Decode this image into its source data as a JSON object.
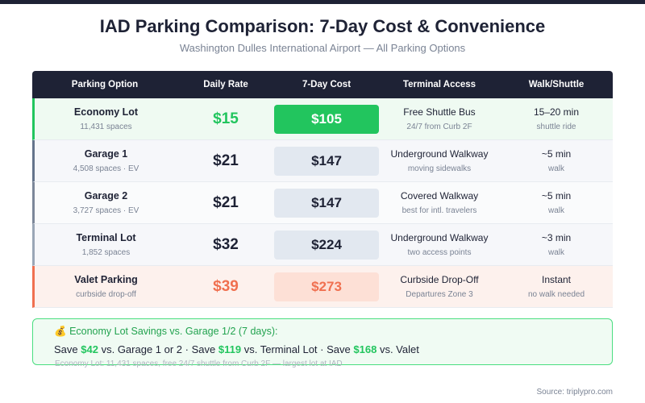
{
  "header": {
    "title": "IAD Parking Comparison: 7-Day Cost & Convenience",
    "subtitle": "Washington Dulles International Airport — All Parking Options"
  },
  "table": {
    "columns": [
      "Parking Option",
      "Daily Rate",
      "7-Day Cost",
      "Terminal Access",
      "Walk/Shuttle"
    ],
    "rows": [
      {
        "name": "Economy Lot",
        "detail": "11,431 spaces",
        "rate": "$15",
        "cost": "$105",
        "access": "Free Shuttle Bus",
        "access_detail": "24/7 from Curb 2F",
        "walk": "15–20 min",
        "walk_detail": "shuttle ride",
        "accent": "#22c55e",
        "background": "#effaf2",
        "cost_fill": "#22c55e",
        "cost_text": "#ffffff",
        "rate_color": "#22c55e"
      },
      {
        "name": "Garage 1",
        "detail": "4,508 spaces · EV",
        "rate": "$21",
        "cost": "$147",
        "access": "Underground Walkway",
        "access_detail": "moving sidewalks",
        "walk": "~5 min",
        "walk_detail": "walk",
        "accent": "#64748b",
        "background": "#f6f7fa",
        "cost_fill": "#e2e8f0",
        "cost_text": "#1e2235",
        "rate_color": "#1e2235"
      },
      {
        "name": "Garage 2",
        "detail": "3,727 spaces · EV",
        "rate": "$21",
        "cost": "$147",
        "access": "Covered Walkway",
        "access_detail": "best for intl. travelers",
        "walk": "~5 min",
        "walk_detail": "walk",
        "accent": "#7c8799",
        "background": "#fafbfc",
        "cost_fill": "#e2e8f0",
        "cost_text": "#1e2235",
        "rate_color": "#1e2235"
      },
      {
        "name": "Terminal Lot",
        "detail": "1,852 spaces",
        "rate": "$32",
        "cost": "$224",
        "access": "Underground Walkway",
        "access_detail": "two access points",
        "walk": "~3 min",
        "walk_detail": "walk",
        "accent": "#9aa6b6",
        "background": "#f6f7fa",
        "cost_fill": "#e2e8f0",
        "cost_text": "#1e2235",
        "rate_color": "#1e2235"
      },
      {
        "name": "Valet Parking",
        "detail": "curbside drop-off",
        "rate": "$39",
        "cost": "$273",
        "access": "Curbside Drop-Off",
        "access_detail": "Departures Zone 3",
        "walk": "Instant",
        "walk_detail": "no walk needed",
        "accent": "#f07050",
        "background": "#fdf1ed",
        "cost_fill": "#fde0d6",
        "cost_text": "#f07050",
        "rate_color": "#f07050"
      }
    ]
  },
  "savings": {
    "icon": "💰",
    "title": "Economy Lot Savings vs. Garage 1/2 (7 days):",
    "separator": "·",
    "items": [
      {
        "prefix": "Save",
        "amount": "$42",
        "target": "vs. Garage 1 or 2"
      },
      {
        "prefix": "Save",
        "amount": "$119",
        "target": "vs. Terminal Lot"
      },
      {
        "prefix": "Save",
        "amount": "$168",
        "target": "vs. Valet"
      }
    ],
    "footnote": "Economy Lot: 11,431 spaces, free 24/7 shuttle from Curb 2F — largest lot at IAD"
  },
  "source": "Source: triplypro.com"
}
